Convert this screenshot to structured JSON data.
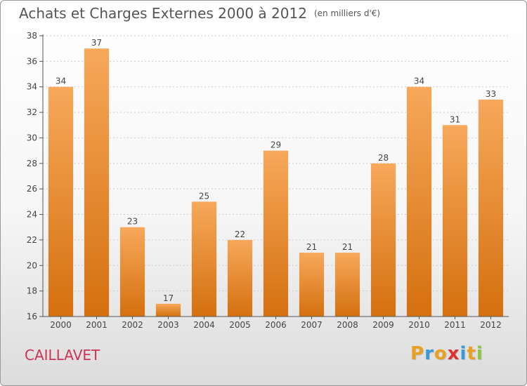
{
  "header": {
    "title": "Achats et Charges Externes 2000 à 2012",
    "unit": "(en milliers d'€)"
  },
  "footer": {
    "commune": "CAILLAVET",
    "logo": {
      "letters": [
        "P",
        "r",
        "o",
        "x",
        "i",
        "t",
        "i"
      ],
      "colors": [
        "#e8a020",
        "#3a9ad9",
        "#e8a020",
        "#e03030",
        "#3a9ad9",
        "#e8a020",
        "#8cc63f"
      ]
    }
  },
  "colors": {
    "bar_top": "#f7a85a",
    "bar_bottom": "#d4700f",
    "axis": "#555555",
    "grid": "#cccccc",
    "text": "#444444"
  },
  "chart_data": {
    "type": "bar",
    "title": "Achats et Charges Externes 2000 à 2012",
    "xlabel": "",
    "ylabel": "",
    "categories": [
      "2000",
      "2001",
      "2002",
      "2003",
      "2004",
      "2005",
      "2006",
      "2007",
      "2008",
      "2009",
      "2010",
      "2011",
      "2012"
    ],
    "values": [
      34,
      37,
      23,
      17,
      25,
      22,
      29,
      21,
      21,
      28,
      34,
      31,
      33
    ],
    "ylim": [
      16,
      38
    ],
    "yticks": [
      16,
      18,
      20,
      22,
      24,
      26,
      28,
      30,
      32,
      34,
      36,
      38
    ],
    "grid": true,
    "data_labels": true,
    "legend": "none"
  }
}
